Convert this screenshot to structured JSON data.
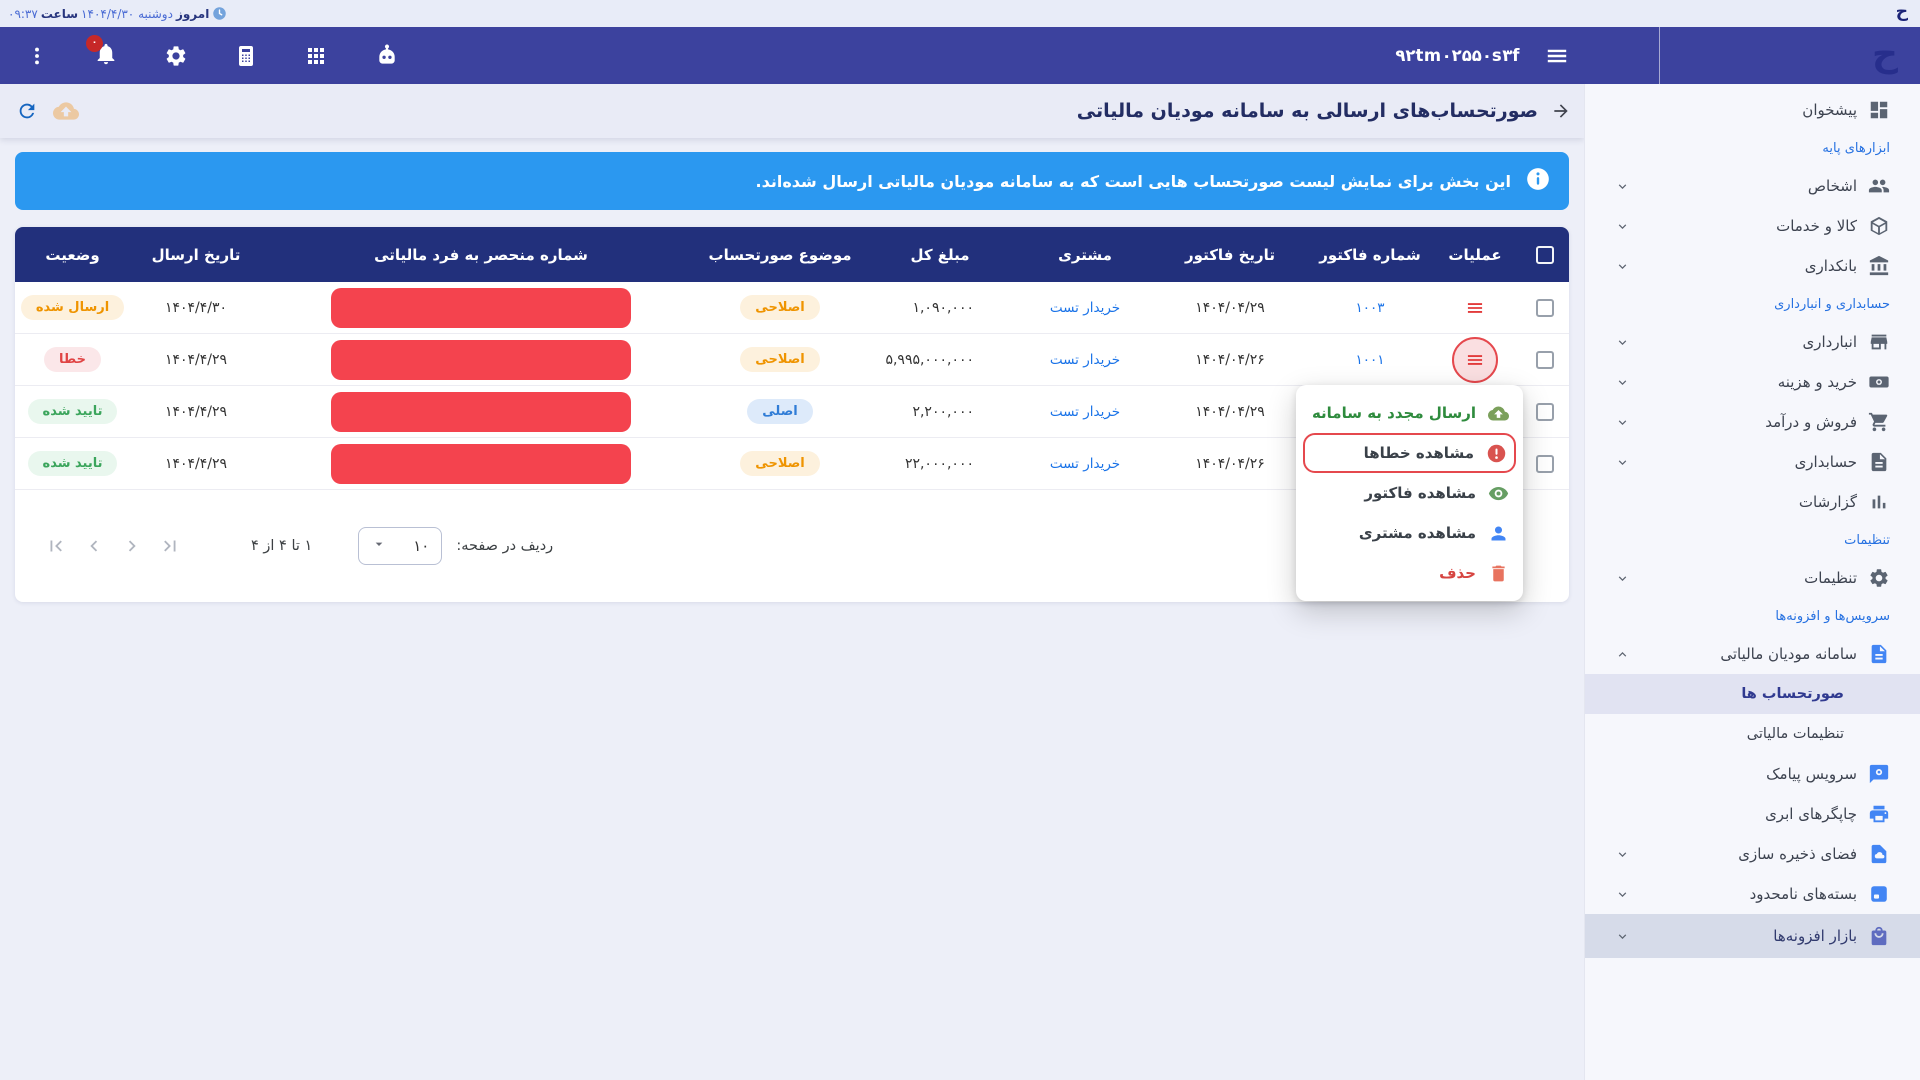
{
  "topbar": {
    "today_label": "امروز",
    "date": "دوشنبه ۱۴۰۴/۴/۳۰",
    "time_label": "ساعت",
    "time": "۰۹:۳۷",
    "logo": "ح"
  },
  "navbar": {
    "workspace_id": "۹۲tm۰۲۵۵۰s۳f",
    "badge_count": "۰",
    "logo": "ح",
    "icons": [
      "kebab-menu",
      "notifications-bell",
      "settings-gear",
      "calculator",
      "apps-grid",
      "assistant-robot",
      "menu-hamburger"
    ]
  },
  "page_header": {
    "title": "صورتحساب‌های ارسالی به سامانه مودیان مالیاتی",
    "icons": [
      "back-arrow",
      "refresh",
      "cloud-upload"
    ]
  },
  "alert": {
    "text": "این بخش برای نمایش لیست صورتحساب هایی است که به سامانه مودیان مالیاتی ارسال شده‌اند.",
    "icon": "info"
  },
  "table": {
    "columns": [
      "",
      "عملیات",
      "شماره فاکتور",
      "تاریخ فاکتور",
      "مشتری",
      "مبلغ کل",
      "موضوع صورتحساب",
      "شماره منحصر به فرد مالیاتی",
      "تاریخ ارسال",
      "وضعیت"
    ],
    "rows": [
      {
        "invoice_no": "۱۰۰۳",
        "invoice_date": "۱۴۰۴/۰۴/۲۹",
        "customer": "خریدار تست",
        "total": "۱,۰۹۰,۰۰۰",
        "subject": {
          "label": "اصلاحی",
          "type": "orange"
        },
        "tax_uid_redacted": true,
        "send_date": "۱۴۰۴/۴/۳۰",
        "status": {
          "label": "ارسال شده",
          "type": "orange"
        },
        "ops_visible": true,
        "ops_active": false
      },
      {
        "invoice_no": "۱۰۰۱",
        "invoice_date": "۱۴۰۴/۰۴/۲۶",
        "customer": "خریدار تست",
        "total": "۵,۹۹۵,۰۰۰,۰۰۰",
        "subject": {
          "label": "اصلاحی",
          "type": "orange"
        },
        "tax_uid_redacted": true,
        "send_date": "۱۴۰۴/۴/۲۹",
        "status": {
          "label": "خطا",
          "type": "red"
        },
        "ops_visible": true,
        "ops_active": true
      },
      {
        "invoice_no": "",
        "invoice_date": "۱۴۰۴/۰۴/۲۹",
        "customer": "خریدار تست",
        "total": "۲,۲۰۰,۰۰۰",
        "subject": {
          "label": "اصلی",
          "type": "blue"
        },
        "tax_uid_redacted": true,
        "send_date": "۱۴۰۴/۴/۲۹",
        "status": {
          "label": "تایید شده",
          "type": "green"
        },
        "ops_visible": false,
        "ops_active": false
      },
      {
        "invoice_no": "",
        "invoice_date": "۱۴۰۴/۰۴/۲۶",
        "customer": "خریدار تست",
        "total": "۲۲,۰۰۰,۰۰۰",
        "subject": {
          "label": "اصلاحی",
          "type": "orange"
        },
        "tax_uid_redacted": true,
        "send_date": "۱۴۰۴/۴/۲۹",
        "status": {
          "label": "تایید شده",
          "type": "green"
        },
        "ops_visible": false,
        "ops_active": false
      }
    ]
  },
  "pagination": {
    "rows_per_page_label": "ردیف در صفحه:",
    "rows_per_page": "۱۰",
    "range": "۱ تا ۴ از ۴",
    "nav_icons": [
      "first-page",
      "prev-page",
      "next-page",
      "last-page"
    ]
  },
  "context_menu": {
    "items": [
      {
        "label": "ارسال مجدد به سامانه",
        "icon": "cloud-upload",
        "color": "green",
        "highlighted": false
      },
      {
        "label": "مشاهده خطاها",
        "icon": "error",
        "color": "default",
        "highlighted": true
      },
      {
        "label": "مشاهده فاکتور",
        "icon": "eye",
        "color": "default",
        "highlighted": false
      },
      {
        "label": "مشاهده مشتری",
        "icon": "person",
        "color": "default",
        "highlighted": false
      },
      {
        "label": "حذف",
        "icon": "trash",
        "color": "red",
        "highlighted": false
      }
    ]
  },
  "sidebar": {
    "items": [
      {
        "type": "item",
        "label": "پیشخوان",
        "icon": "dashboard"
      },
      {
        "type": "section",
        "label": "ابزارهای پایه"
      },
      {
        "type": "item",
        "label": "اشخاص",
        "icon": "people",
        "chevron": "down"
      },
      {
        "type": "item",
        "label": "کالا و خدمات",
        "icon": "box",
        "chevron": "down"
      },
      {
        "type": "item",
        "label": "بانکداری",
        "icon": "bank",
        "chevron": "down"
      },
      {
        "type": "section",
        "label": "حسابداری و انبارداری"
      },
      {
        "type": "item",
        "label": "انبارداری",
        "icon": "warehouse",
        "chevron": "down"
      },
      {
        "type": "item",
        "label": "خرید و هزینه",
        "icon": "money",
        "chevron": "down"
      },
      {
        "type": "item",
        "label": "فروش و درآمد",
        "icon": "cart",
        "chevron": "down"
      },
      {
        "type": "item",
        "label": "حسابداری",
        "icon": "ledger",
        "chevron": "down"
      },
      {
        "type": "item",
        "label": "گزارشات",
        "icon": "chart"
      },
      {
        "type": "section",
        "label": "تنظیمات"
      },
      {
        "type": "item",
        "label": "تنظیمات",
        "icon": "gears",
        "chevron": "down"
      },
      {
        "type": "section",
        "label": "سرویس‌ها و افزونه‌ها"
      },
      {
        "type": "item",
        "label": "سامانه مودیان مالیاتی",
        "icon": "tax-doc",
        "icon_color": "blue",
        "chevron": "up"
      },
      {
        "type": "subitem",
        "label": "صورتحساب ها",
        "selected": true
      },
      {
        "type": "subitem",
        "label": "تنظیمات مالیاتی",
        "selected": false
      },
      {
        "type": "item",
        "label": "سرویس پیامک",
        "icon": "sms",
        "icon_color": "blue"
      },
      {
        "type": "item",
        "label": "چاپگرهای ابری",
        "icon": "printer",
        "icon_color": "blue"
      },
      {
        "type": "item",
        "label": "فضای ذخیره سازی",
        "icon": "storage",
        "icon_color": "blue",
        "chevron": "down"
      },
      {
        "type": "item",
        "label": "بسته‌های نامحدود",
        "icon": "package",
        "icon_color": "blue",
        "chevron": "down"
      },
      {
        "type": "item",
        "label": "بازار افزونه‌ها",
        "icon": "bag",
        "icon_color": "purple",
        "chevron": "down",
        "highlighted": true
      }
    ]
  },
  "colors": {
    "navbar": "#3c429e",
    "table_header": "#22307c",
    "alert": "#2b98f0",
    "redacted_box": "#f4434e",
    "link": "#1a73e8",
    "danger": "#e23b3b",
    "success": "#3ba55c",
    "warning": "#ef9400",
    "sidebar_bg": "#f6f7fc",
    "selected_subitem_bg": "#e1e3f2"
  }
}
